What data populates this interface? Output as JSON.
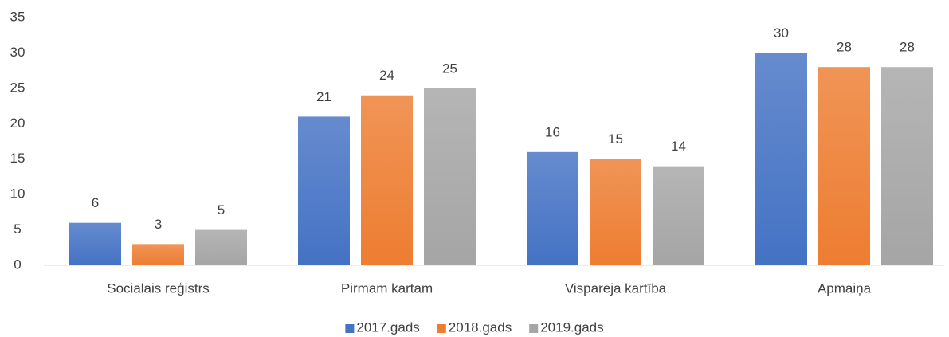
{
  "chart_data": {
    "type": "bar",
    "categories": [
      "Sociālais reģistrs",
      "Pirmām kārtām",
      "Vispārējā kārtībā",
      "Apmaiņa"
    ],
    "series": [
      {
        "name": "2017.gads",
        "color": "#4472c4",
        "values": [
          6,
          21,
          16,
          30
        ]
      },
      {
        "name": "2018.gads",
        "color": "#ed7d31",
        "values": [
          3,
          24,
          15,
          28
        ]
      },
      {
        "name": "2019.gads",
        "color": "#a5a5a5",
        "values": [
          5,
          25,
          14,
          28
        ]
      }
    ],
    "ylim": [
      0,
      35
    ],
    "yticks": [
      0,
      5,
      10,
      15,
      20,
      25,
      30,
      35
    ],
    "grid": false,
    "legend": "bottom"
  }
}
